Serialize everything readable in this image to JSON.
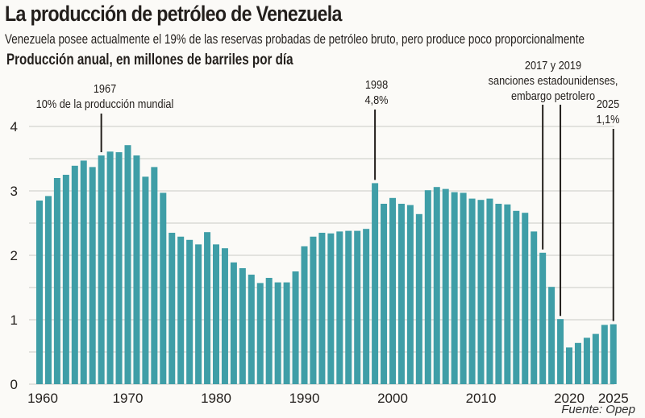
{
  "title": "La producción de petróleo de Venezuela",
  "subtitle": "Venezuela posee actualmente el 19% de las reservas probadas de petróleo bruto, pero produce poco proporcionalmente",
  "unit_label": "Producción anual, en millones de barriles por día",
  "source": "Fuente: Opep",
  "colors": {
    "bar": "#3f9ea7",
    "grid": "#d9d9d6",
    "text": "#231f1c"
  },
  "chart_data": {
    "type": "bar",
    "title": "La producción de petróleo de Venezuela",
    "ylabel": "Producción anual, en millones de barriles por día",
    "xlabel": "",
    "ylim": [
      0,
      4.2
    ],
    "yticks": [
      0,
      1,
      2,
      3,
      4
    ],
    "grid_step": 0.5,
    "grid": true,
    "xtick_labels": [
      "1960",
      "1970",
      "1980",
      "1990",
      "2000",
      "2010",
      "2020",
      "2025"
    ],
    "categories": [
      1960,
      1961,
      1962,
      1963,
      1964,
      1965,
      1966,
      1967,
      1968,
      1969,
      1970,
      1971,
      1972,
      1973,
      1974,
      1975,
      1976,
      1977,
      1978,
      1979,
      1980,
      1981,
      1982,
      1983,
      1984,
      1985,
      1986,
      1987,
      1988,
      1989,
      1990,
      1991,
      1992,
      1993,
      1994,
      1995,
      1996,
      1997,
      1998,
      1999,
      2000,
      2001,
      2002,
      2003,
      2004,
      2005,
      2006,
      2007,
      2008,
      2009,
      2010,
      2011,
      2012,
      2013,
      2014,
      2015,
      2016,
      2017,
      2018,
      2019,
      2020,
      2021,
      2022,
      2023,
      2024,
      2025
    ],
    "values": [
      2.85,
      2.92,
      3.2,
      3.25,
      3.39,
      3.47,
      3.37,
      3.55,
      3.61,
      3.6,
      3.71,
      3.55,
      3.22,
      3.37,
      2.97,
      2.35,
      2.29,
      2.24,
      2.17,
      2.36,
      2.17,
      2.11,
      1.89,
      1.8,
      1.7,
      1.57,
      1.65,
      1.58,
      1.58,
      1.75,
      2.14,
      2.29,
      2.35,
      2.34,
      2.37,
      2.38,
      2.38,
      2.41,
      3.12,
      2.8,
      2.89,
      2.8,
      2.78,
      2.64,
      3.01,
      3.06,
      3.03,
      2.98,
      2.97,
      2.88,
      2.86,
      2.88,
      2.8,
      2.79,
      2.69,
      2.66,
      2.37,
      2.04,
      1.51,
      1.01,
      0.57,
      0.64,
      0.72,
      0.78,
      0.92,
      0.93
    ],
    "annotations": [
      {
        "year": 1967,
        "lines": [
          "1967",
          "10% de la producción mundial"
        ]
      },
      {
        "year": 1998,
        "lines": [
          "1998",
          "4,8%"
        ]
      },
      {
        "years": [
          2017,
          2019
        ],
        "lines": [
          "2017 y 2019",
          "sanciones estadounidenses,",
          "embargo petrolero"
        ]
      },
      {
        "year": 2025,
        "lines": [
          "2025",
          "1,1%"
        ]
      }
    ]
  }
}
